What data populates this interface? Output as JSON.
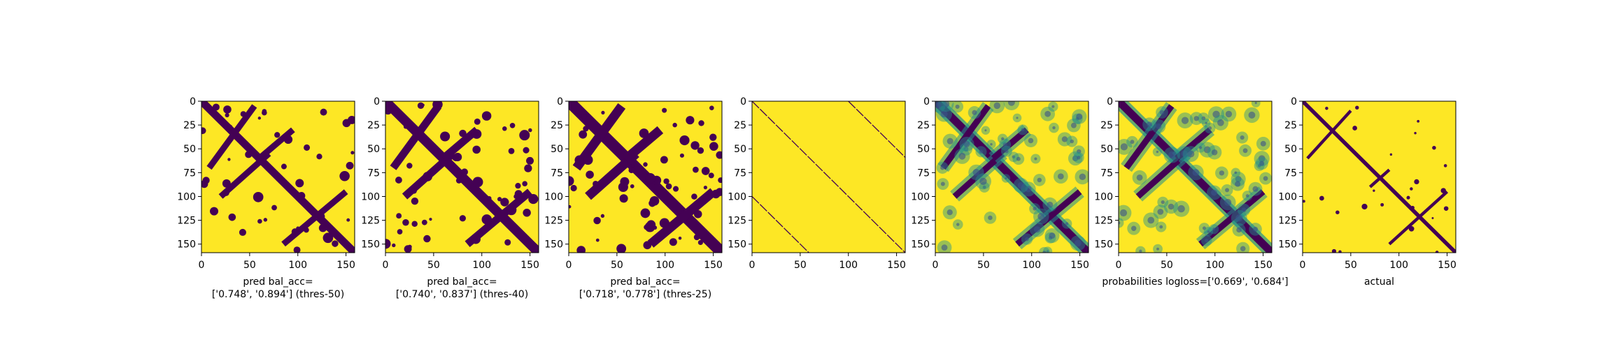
{
  "chart_data": [
    {
      "type": "heatmap",
      "variant": "binary",
      "colors": [
        "#440154",
        "#fde725"
      ],
      "xlim": [
        0,
        159
      ],
      "ylim": [
        159,
        0
      ],
      "xticks": [
        0,
        50,
        100,
        150
      ],
      "yticks": [
        0,
        25,
        50,
        75,
        100,
        125,
        150
      ],
      "xlabel_lines": [
        "pred bal_acc=",
        "['0.748', '0.894'] (thres-50)"
      ],
      "threshold": 50,
      "bal_acc": [
        0.748,
        0.894
      ]
    },
    {
      "type": "heatmap",
      "variant": "binary",
      "colors": [
        "#440154",
        "#fde725"
      ],
      "xlim": [
        0,
        159
      ],
      "ylim": [
        159,
        0
      ],
      "xticks": [
        0,
        50,
        100,
        150
      ],
      "yticks": [
        0,
        25,
        50,
        75,
        100,
        125,
        150
      ],
      "xlabel_lines": [
        "pred bal_acc=",
        "['0.740', '0.837'] (thres-40)"
      ],
      "threshold": 40,
      "bal_acc": [
        0.74,
        0.837
      ]
    },
    {
      "type": "heatmap",
      "variant": "binary",
      "colors": [
        "#440154",
        "#fde725"
      ],
      "xlim": [
        0,
        159
      ],
      "ylim": [
        159,
        0
      ],
      "xticks": [
        0,
        50,
        100,
        150
      ],
      "yticks": [
        0,
        25,
        50,
        75,
        100,
        125,
        150
      ],
      "xlabel_lines": [
        "pred bal_acc=",
        "['0.718', '0.778'] (thres-25)"
      ],
      "threshold": 25,
      "bal_acc": [
        0.718,
        0.778
      ]
    },
    {
      "type": "heatmap",
      "variant": "lines",
      "colors": [
        "#440154",
        "#fde725"
      ],
      "xlim": [
        0,
        159
      ],
      "ylim": [
        159,
        0
      ],
      "xticks": [
        0,
        50,
        100,
        150
      ],
      "yticks": [
        0,
        25,
        50,
        75,
        100,
        125,
        150
      ],
      "xlabel_lines": []
    },
    {
      "type": "heatmap",
      "variant": "continuous",
      "colors": [
        "#440154",
        "#21918c",
        "#5ec962",
        "#fde725"
      ],
      "xlim": [
        0,
        159
      ],
      "ylim": [
        159,
        0
      ],
      "xticks": [
        0,
        50,
        100,
        150
      ],
      "yticks": [
        0,
        25,
        50,
        75,
        100,
        125,
        150
      ],
      "xlabel_lines": []
    },
    {
      "type": "heatmap",
      "variant": "continuous",
      "colors": [
        "#440154",
        "#21918c",
        "#5ec962",
        "#fde725"
      ],
      "xlim": [
        0,
        159
      ],
      "ylim": [
        159,
        0
      ],
      "xticks": [
        0,
        50,
        100,
        150
      ],
      "yticks": [
        0,
        25,
        50,
        75,
        100,
        125,
        150
      ],
      "xlabel_lines": [
        "probabilities logloss=['0.669', '0.684']"
      ],
      "logloss": [
        0.669,
        0.684
      ]
    },
    {
      "type": "heatmap",
      "variant": "binary-sparse",
      "colors": [
        "#440154",
        "#fde725"
      ],
      "xlim": [
        0,
        159
      ],
      "ylim": [
        159,
        0
      ],
      "xticks": [
        0,
        50,
        100,
        150
      ],
      "yticks": [
        0,
        25,
        50,
        75,
        100,
        125,
        150
      ],
      "xlabel_lines": [
        "actual"
      ]
    }
  ]
}
